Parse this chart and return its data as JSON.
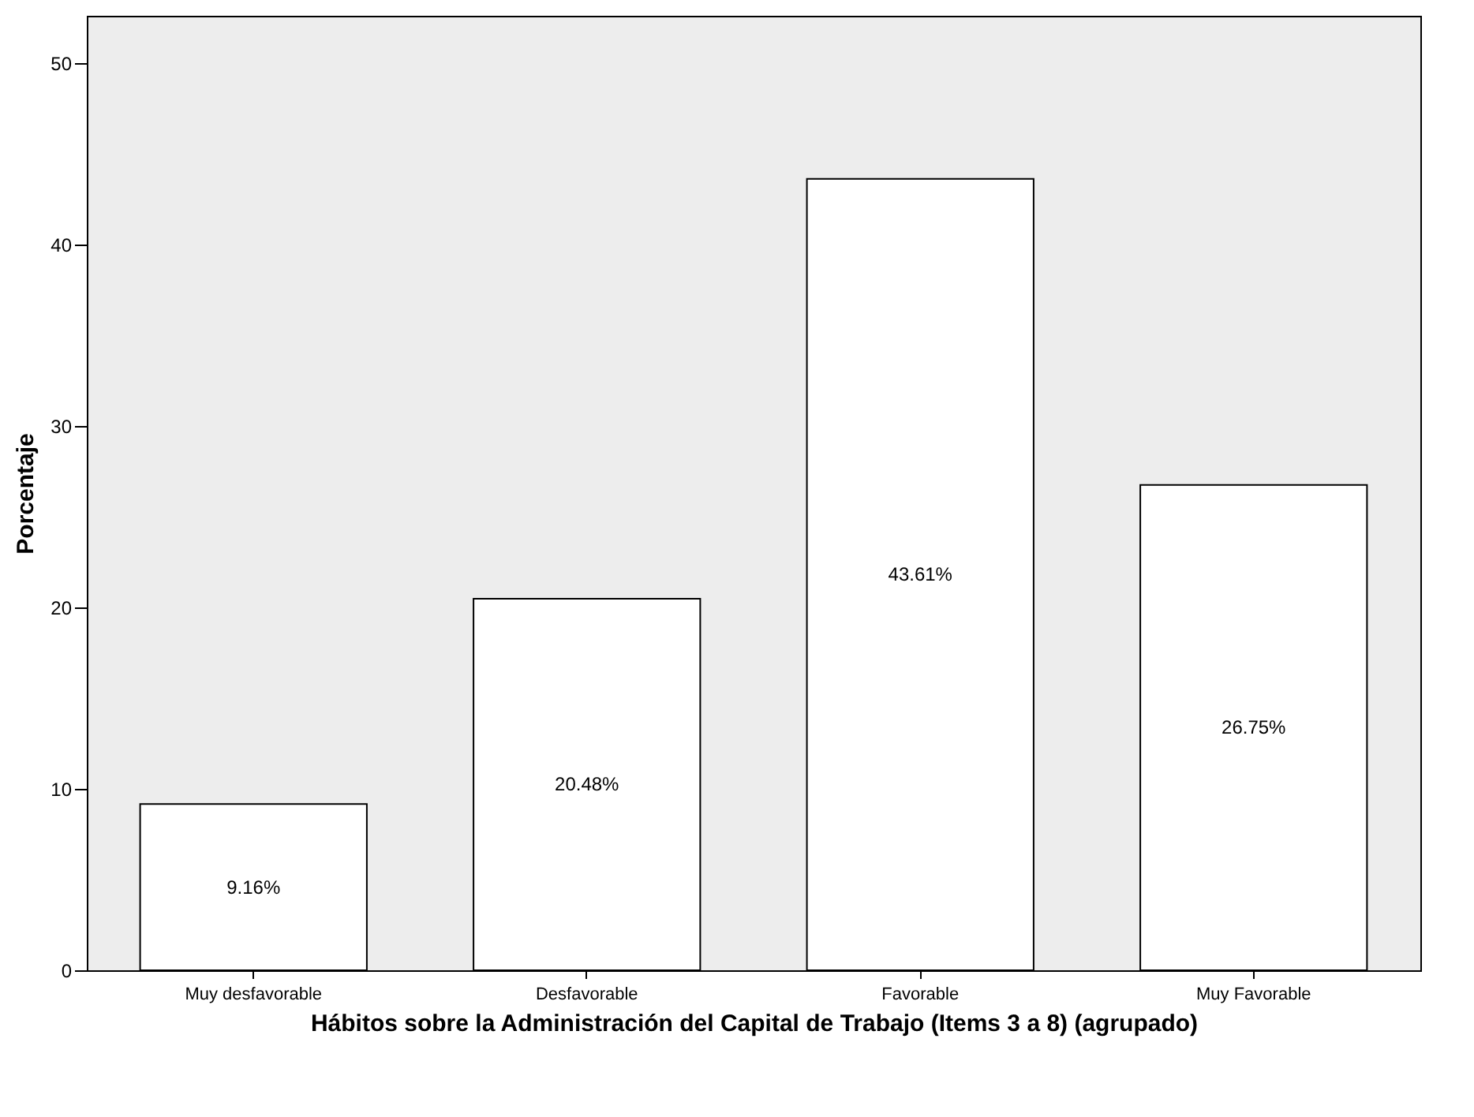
{
  "chart_data": {
    "type": "bar",
    "xlabel": "Hábitos sobre la Administración del Capital de Trabajo (Items 3 a 8) (agrupado)",
    "ylabel": "Porcentaje",
    "categories": [
      "Muy desfavorable",
      "Desfavorable",
      "Favorable",
      "Muy Favorable"
    ],
    "values": [
      9.16,
      20.48,
      43.61,
      26.75
    ],
    "value_labels": [
      "9.16%",
      "20.48%",
      "43.61%",
      "26.75%"
    ],
    "color": "#ffffff",
    "ylim": [
      0,
      52.6
    ],
    "yticks": [
      0,
      10,
      20,
      30,
      40,
      50
    ],
    "grid": false
  }
}
